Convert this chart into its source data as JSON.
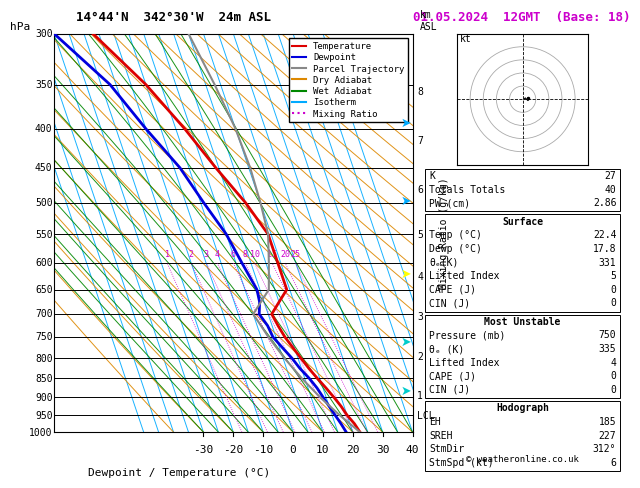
{
  "title_left": "14°44'N  342°30'W  24m ASL",
  "title_right": "01.05.2024  12GMT  (Base: 18)",
  "xlabel": "Dewpoint / Temperature (°C)",
  "ylabel_left": "hPa",
  "pressure_levels": [
    300,
    350,
    400,
    450,
    500,
    550,
    600,
    650,
    700,
    750,
    800,
    850,
    900,
    950,
    1000
  ],
  "temp_xlim": [
    -35,
    40
  ],
  "temp_xticks": [
    -30,
    -20,
    -10,
    0,
    10,
    20,
    30,
    40
  ],
  "km_ticks": [
    1,
    2,
    3,
    4,
    5,
    6,
    7,
    8
  ],
  "km_pressures": [
    895,
    795,
    705,
    625,
    550,
    480,
    415,
    357
  ],
  "lcl_pressure": 952,
  "isotherm_color": "#00aaff",
  "dry_adiabat_color": "#dd8800",
  "wet_adiabat_color": "#008800",
  "mixing_ratio_color": "#cc00cc",
  "mixing_ratio_values": [
    1,
    2,
    3,
    4,
    6,
    8,
    10,
    15,
    20,
    25
  ],
  "temp_profile_p": [
    1000,
    975,
    950,
    925,
    900,
    875,
    850,
    825,
    800,
    775,
    750,
    725,
    700,
    675,
    650,
    600,
    550,
    500,
    450,
    400,
    350,
    300
  ],
  "temp_profile_t": [
    22.4,
    21.5,
    20.0,
    19.0,
    17.6,
    16.0,
    14.2,
    12.5,
    11.0,
    9.5,
    8.0,
    7.0,
    6.2,
    10.0,
    14.0,
    14.0,
    14.0,
    10.0,
    4.0,
    -2.0,
    -10.0,
    -22.0
  ],
  "temp_color": "#dd0000",
  "dewp_profile_p": [
    1000,
    975,
    950,
    925,
    900,
    875,
    850,
    825,
    800,
    775,
    750,
    725,
    700,
    675,
    650,
    600,
    550,
    500,
    450,
    400,
    350,
    300
  ],
  "dewp_profile_t": [
    17.8,
    17.0,
    16.0,
    15.0,
    14.0,
    13.0,
    11.5,
    9.5,
    8.0,
    6.0,
    4.0,
    3.5,
    2.0,
    3.5,
    4.0,
    2.0,
    0.0,
    -4.0,
    -8.0,
    -15.0,
    -22.0,
    -35.0
  ],
  "dewp_color": "#0000dd",
  "parcel_profile_p": [
    1000,
    950,
    900,
    850,
    800,
    750,
    700,
    650,
    600,
    550,
    500,
    450,
    400,
    350,
    300
  ],
  "parcel_profile_t": [
    22.4,
    17.5,
    13.0,
    9.0,
    5.5,
    2.5,
    0.0,
    8.0,
    11.0,
    14.0,
    15.0,
    15.5,
    15.0,
    13.0,
    10.0
  ],
  "parcel_color": "#888888",
  "legend_items": [
    {
      "label": "Temperature",
      "color": "#dd0000",
      "style": "solid"
    },
    {
      "label": "Dewpoint",
      "color": "#0000dd",
      "style": "solid"
    },
    {
      "label": "Parcel Trajectory",
      "color": "#888888",
      "style": "solid"
    },
    {
      "label": "Dry Adiabat",
      "color": "#dd8800",
      "style": "solid"
    },
    {
      "label": "Wet Adiabat",
      "color": "#008800",
      "style": "solid"
    },
    {
      "label": "Isotherm",
      "color": "#00aaff",
      "style": "solid"
    },
    {
      "label": "Mixing Ratio",
      "color": "#cc00cc",
      "style": "dotted"
    }
  ],
  "wind_hodograph_u": [
    1,
    2,
    3,
    4,
    5,
    4
  ],
  "wind_hodograph_v": [
    0,
    1,
    0,
    -1,
    0,
    1
  ],
  "table_indices": [
    [
      "K",
      "27"
    ],
    [
      "Totals Totals",
      "40"
    ],
    [
      "PW (cm)",
      "2.86"
    ]
  ],
  "table_surface_title": "Surface",
  "table_surface": [
    [
      "Temp (°C)",
      "22.4"
    ],
    [
      "Dewp (°C)",
      "17.8"
    ],
    [
      "θₑ(K)",
      "331"
    ],
    [
      "Lifted Index",
      "5"
    ],
    [
      "CAPE (J)",
      "0"
    ],
    [
      "CIN (J)",
      "0"
    ]
  ],
  "table_unstable_title": "Most Unstable",
  "table_unstable": [
    [
      "Pressure (mb)",
      "750"
    ],
    [
      "θₑ (K)",
      "335"
    ],
    [
      "Lifted Index",
      "4"
    ],
    [
      "CAPE (J)",
      "0"
    ],
    [
      "CIN (J)",
      "0"
    ]
  ],
  "table_hodograph_title": "Hodograph",
  "table_hodograph": [
    [
      "EH",
      "185"
    ],
    [
      "SREH",
      "227"
    ],
    [
      "StmDir",
      "312°"
    ],
    [
      "StmSpd (kt)",
      "6"
    ]
  ],
  "copyright": "© weatheronline.co.uk",
  "bg_color": "#ffffff",
  "font_family": "monospace"
}
